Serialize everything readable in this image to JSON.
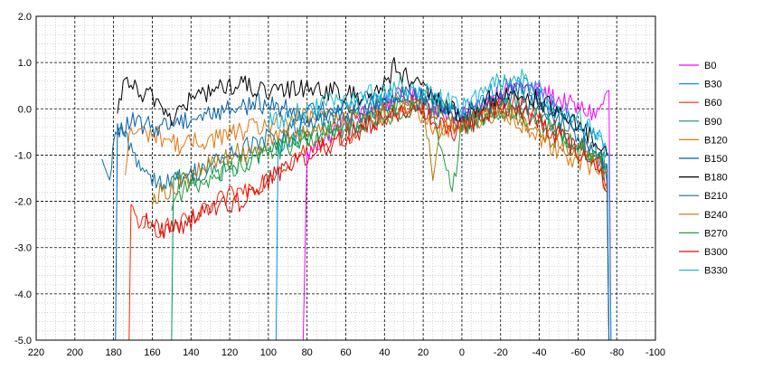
{
  "chart_data": {
    "type": "line",
    "title": "",
    "xlabel": "",
    "ylabel": "",
    "xlim": [
      220,
      -100
    ],
    "ylim": [
      -5.0,
      2.0
    ],
    "x_ticks": [
      220,
      200,
      180,
      160,
      140,
      120,
      100,
      80,
      60,
      40,
      20,
      0,
      -20,
      -40,
      -60,
      -80,
      -100
    ],
    "x_tick_labels": [
      "220",
      "200",
      "180",
      "160",
      "140",
      "120",
      "100",
      "80",
      "60",
      "40",
      "20",
      "0",
      "-20",
      "-40",
      "-60",
      "-80",
      "-100"
    ],
    "y_ticks": [
      2.0,
      1.0,
      0.0,
      -1.0,
      -2.0,
      -3.0,
      -4.0,
      -5.0
    ],
    "y_tick_labels": [
      "2.0",
      "1.0",
      "0.0",
      "-1.0",
      "-2.0",
      "-3.0",
      "-4.0",
      "-5.0"
    ],
    "grid": {
      "major": true,
      "minor": true,
      "major_style": "dashed-black",
      "minor_style": "dotted-gray"
    },
    "legend_position": "right",
    "series": [
      {
        "name": "B0",
        "color": "#ff00ff",
        "x": [
          82,
          80,
          70,
          60,
          50,
          40,
          30,
          20,
          10,
          0,
          -10,
          -20,
          -30,
          -40,
          -50,
          -60,
          -70,
          -76,
          -77
        ],
        "values": [
          -5.0,
          -1.0,
          -0.6,
          -0.3,
          -0.1,
          0.1,
          0.3,
          0.2,
          0.0,
          -0.2,
          0.1,
          0.4,
          0.5,
          0.4,
          0.2,
          0.0,
          -0.1,
          0.4,
          -5.0
        ]
      },
      {
        "name": "B30",
        "color": "#0099dd",
        "x": [
          96,
          95,
          85,
          75,
          60,
          50,
          40,
          30,
          20,
          10,
          0,
          -10,
          -20,
          -30,
          -40,
          -50,
          -60,
          -70,
          -76,
          -77
        ],
        "values": [
          -5.0,
          -0.8,
          -0.5,
          -0.2,
          0.0,
          0.1,
          0.2,
          0.4,
          0.3,
          0.1,
          -0.1,
          0.2,
          0.5,
          0.5,
          0.3,
          0.0,
          -0.3,
          -0.7,
          -1.0,
          -5.0
        ]
      },
      {
        "name": "B60",
        "color": "#ff2200",
        "x": [
          172,
          171,
          165,
          155,
          145,
          135,
          125,
          115,
          105,
          95,
          85,
          75,
          65,
          55,
          45,
          35,
          25,
          15,
          5,
          0,
          -10,
          -20,
          -30,
          -40,
          -50,
          -60,
          -70,
          -75,
          -76
        ],
        "values": [
          -5.0,
          -2.2,
          -2.5,
          -2.6,
          -2.5,
          -2.3,
          -2.0,
          -1.8,
          -1.6,
          -1.3,
          -1.0,
          -0.8,
          -0.6,
          -0.5,
          -0.3,
          -0.1,
          0.1,
          0.0,
          -0.3,
          -0.4,
          -0.1,
          0.2,
          0.1,
          -0.2,
          -0.5,
          -0.8,
          -1.1,
          -1.6,
          -5.0
        ]
      },
      {
        "name": "B90",
        "color": "#109060",
        "x": [
          150,
          149,
          140,
          130,
          120,
          110,
          100,
          90,
          80,
          70,
          60,
          50,
          40,
          30,
          20,
          10,
          0,
          -10,
          -20,
          -30,
          -40,
          -50,
          -60,
          -70,
          -75,
          -76
        ],
        "values": [
          -5.0,
          -1.6,
          -1.5,
          -1.4,
          -1.3,
          -1.1,
          -0.9,
          -0.8,
          -0.6,
          -0.5,
          -0.4,
          -0.3,
          -0.1,
          0.1,
          0.2,
          0.0,
          -0.3,
          -0.2,
          0.1,
          0.1,
          -0.2,
          -0.5,
          -0.8,
          -1.0,
          -1.2,
          -5.0
        ]
      },
      {
        "name": "B120",
        "color": "#e07810",
        "x": [
          174,
          172,
          165,
          155,
          145,
          135,
          125,
          115,
          105,
          95,
          85,
          75,
          65,
          55,
          45,
          35,
          25,
          15,
          5,
          0,
          -10,
          -20,
          -30,
          -40,
          -50,
          -60,
          -70,
          -75
        ],
        "values": [
          -1.6,
          -0.5,
          -0.5,
          -0.6,
          -0.8,
          -0.7,
          -0.6,
          -0.5,
          -0.4,
          -0.3,
          -0.2,
          -0.2,
          -0.1,
          0.0,
          -0.1,
          0.1,
          0.1,
          -0.5,
          -0.4,
          -0.3,
          -0.2,
          0.0,
          -0.3,
          -0.6,
          -0.9,
          -1.1,
          -1.3,
          -1.6
        ]
      },
      {
        "name": "B150",
        "color": "#005faa",
        "x": [
          179,
          178,
          170,
          160,
          150,
          140,
          130,
          120,
          110,
          100,
          90,
          80,
          70,
          60,
          50,
          40,
          30,
          20,
          10,
          0,
          -10,
          -20,
          -30,
          -40,
          -50,
          -60,
          -70,
          -75,
          -76
        ],
        "values": [
          -5.0,
          -0.5,
          -0.3,
          -0.4,
          -0.3,
          -0.2,
          -0.1,
          0.0,
          0.1,
          0.1,
          0.0,
          -0.1,
          0.0,
          0.1,
          0.0,
          0.2,
          0.4,
          0.3,
          0.1,
          -0.1,
          0.1,
          0.3,
          0.4,
          0.2,
          -0.1,
          -0.5,
          -0.9,
          -1.2,
          -5.0
        ]
      },
      {
        "name": "B180",
        "color": "#000000",
        "x": [
          178,
          176,
          173,
          170,
          165,
          160,
          150,
          140,
          130,
          120,
          110,
          100,
          90,
          80,
          70,
          60,
          50,
          40,
          35,
          30,
          20,
          10,
          0,
          -10,
          -20,
          -30,
          -40,
          -50,
          -60,
          -70,
          -75
        ],
        "values": [
          -0.3,
          0.3,
          0.7,
          0.5,
          0.2,
          0.3,
          -0.2,
          0.2,
          0.4,
          0.5,
          0.5,
          0.3,
          0.4,
          0.5,
          0.4,
          0.3,
          0.3,
          0.5,
          0.9,
          0.7,
          0.4,
          0.1,
          -0.2,
          0.1,
          0.3,
          0.3,
          0.2,
          -0.1,
          -0.4,
          -0.7,
          -1.0
        ]
      },
      {
        "name": "B210",
        "color": "#1070a0",
        "x": [
          186,
          184,
          181,
          180,
          175,
          165,
          155,
          145,
          135,
          125,
          115,
          105,
          95,
          85,
          75,
          65,
          55,
          45,
          35,
          25,
          15,
          5,
          0,
          -10,
          -20,
          -30,
          -40,
          -50,
          -60,
          -70,
          -75
        ],
        "values": [
          -1.3,
          -1.4,
          -1.5,
          -0.6,
          -0.5,
          -1.3,
          -1.6,
          -1.5,
          -1.3,
          -1.1,
          -0.9,
          -0.7,
          -0.6,
          -0.4,
          -0.3,
          -0.2,
          -0.1,
          0.0,
          0.1,
          0.2,
          0.1,
          -0.2,
          -0.3,
          0.0,
          0.2,
          0.2,
          0.0,
          -0.3,
          -0.6,
          -1.0,
          -1.6
        ]
      },
      {
        "name": "B240",
        "color": "#b07a10",
        "x": [
          160,
          150,
          140,
          130,
          120,
          110,
          100,
          90,
          80,
          70,
          60,
          50,
          40,
          30,
          20,
          15,
          10,
          0,
          -10,
          -20,
          -30,
          -40,
          -50,
          -60,
          -70,
          -75
        ],
        "values": [
          -1.9,
          -1.7,
          -1.5,
          -1.2,
          -1.0,
          -0.9,
          -0.7,
          -0.6,
          -0.5,
          -0.4,
          -0.3,
          -0.2,
          -0.1,
          0.0,
          0.1,
          -1.4,
          -0.4,
          -0.3,
          -0.2,
          0.0,
          -0.2,
          -0.5,
          -0.7,
          -0.9,
          -1.1,
          -1.4
        ]
      },
      {
        "name": "B270",
        "color": "#20a040",
        "x": [
          150,
          145,
          135,
          125,
          115,
          105,
          95,
          85,
          75,
          65,
          55,
          45,
          35,
          25,
          15,
          5,
          0,
          -10,
          -20,
          -30,
          -40,
          -50,
          -60,
          -70,
          -75
        ],
        "values": [
          -2.0,
          -1.8,
          -1.6,
          -1.4,
          -1.2,
          -1.0,
          -0.9,
          -0.7,
          -0.6,
          -0.5,
          -0.4,
          -0.2,
          -0.1,
          0.0,
          0.0,
          -1.8,
          -0.4,
          -0.2,
          0.0,
          -0.1,
          -0.3,
          -0.5,
          -0.8,
          -1.0,
          -1.2
        ]
      },
      {
        "name": "B300",
        "color": "#d01010",
        "x": [
          165,
          155,
          145,
          135,
          125,
          115,
          105,
          95,
          85,
          75,
          65,
          55,
          45,
          35,
          25,
          15,
          5,
          0,
          -10,
          -20,
          -30,
          -40,
          -50,
          -60,
          -70,
          -75
        ],
        "values": [
          -2.4,
          -2.6,
          -2.5,
          -2.3,
          -2.1,
          -2.0,
          -1.7,
          -1.4,
          -1.1,
          -0.9,
          -0.7,
          -0.5,
          -0.3,
          -0.1,
          0.0,
          -0.2,
          -0.5,
          -0.4,
          -0.2,
          0.1,
          0.0,
          -0.3,
          -0.6,
          -0.9,
          -1.3,
          -1.8
        ]
      },
      {
        "name": "B330",
        "color": "#20b8d0",
        "x": [
          100,
          90,
          80,
          70,
          60,
          50,
          40,
          30,
          20,
          10,
          0,
          -10,
          -20,
          -30,
          -40,
          -50,
          -60,
          -70,
          -75
        ],
        "values": [
          -0.3,
          -0.2,
          0.0,
          0.1,
          0.2,
          0.3,
          0.3,
          0.5,
          0.4,
          0.2,
          0.0,
          0.3,
          0.6,
          0.7,
          0.4,
          0.1,
          -0.2,
          -0.6,
          -0.9
        ]
      }
    ]
  }
}
